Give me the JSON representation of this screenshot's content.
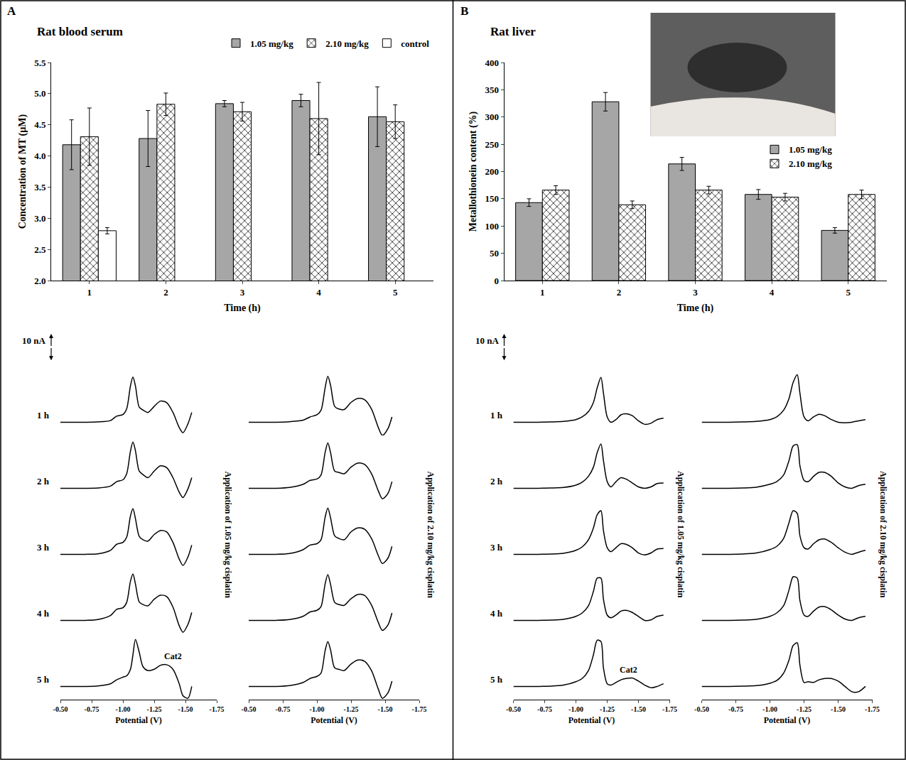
{
  "chart_data": [
    {
      "type": "bar",
      "panel": "A",
      "title": "Rat blood serum",
      "x_label": "Time (h)",
      "y_label": "Concentration of MT (µM)",
      "categories": [
        "1",
        "2",
        "3",
        "4",
        "5"
      ],
      "series": [
        {
          "name": "1.05 mg/kg",
          "color": "#a6a6a6",
          "values": [
            4.18,
            4.28,
            4.84,
            4.89,
            4.63
          ],
          "errors": [
            0.4,
            0.45,
            0.05,
            0.1,
            0.48
          ]
        },
        {
          "name": "2.10 mg/kg",
          "color": "#ffffff",
          "marker": "crosshatch",
          "values": [
            4.31,
            4.83,
            4.71,
            4.6,
            4.55
          ],
          "errors": [
            0.46,
            0.18,
            0.15,
            0.58,
            0.27
          ]
        },
        {
          "name": "control",
          "color": "#ffffff",
          "values": [
            2.8,
            null,
            null,
            null,
            null
          ],
          "errors": [
            0.05,
            null,
            null,
            null,
            null
          ]
        }
      ],
      "ylim": [
        2.0,
        5.5
      ],
      "yticks": [
        {
          "value": 2.0,
          "label": "2.0"
        },
        2.5,
        {
          "value": 3.0,
          "label": "3.0"
        },
        3.5,
        {
          "value": 4.0,
          "label": "4.0"
        },
        4.5,
        {
          "value": 5.0,
          "label": "5.0"
        },
        5.5
      ],
      "grid": false,
      "legend": "top right"
    },
    {
      "type": "line",
      "panel": "A",
      "title": "Application of 1.05 mg/kg cisplatin",
      "x_label": "Potential (V)",
      "color": "#000000",
      "scale_bar": {
        "value": 10,
        "label": "10 nA"
      },
      "x": [
        -0.5,
        -0.6,
        -0.7,
        -0.8,
        -0.9,
        -0.95,
        -1.0,
        -1.03,
        -1.06,
        -1.08,
        -1.1,
        -1.13,
        -1.16,
        -1.2,
        -1.25,
        -1.3,
        -1.35,
        -1.4,
        -1.45,
        -1.48,
        -1.52,
        -1.55
      ],
      "series": [
        {
          "name": "1 h",
          "values": [
            3.0,
            3.0,
            3.0,
            3.1,
            3.6,
            5.3,
            5.9,
            8.1,
            16.7,
            20.1,
            16.7,
            8.7,
            7.6,
            6.7,
            9.0,
            11.0,
            10.4,
            6.7,
            1.0,
            -1.0,
            2.4,
            6.7
          ]
        },
        {
          "name": "2 h",
          "values": [
            3.0,
            3.0,
            3.0,
            3.1,
            3.8,
            5.5,
            6.2,
            8.5,
            17.0,
            20.5,
            17.2,
            9.5,
            8.2,
            7.0,
            9.5,
            11.5,
            10.8,
            7.0,
            1.5,
            -0.5,
            2.8,
            7.0
          ]
        },
        {
          "name": "3 h",
          "values": [
            3.0,
            3.0,
            3.0,
            3.2,
            4.5,
            6.8,
            7.5,
            9.5,
            17.5,
            20.3,
            16.5,
            9.8,
            8.5,
            8.0,
            10.5,
            12.0,
            11.5,
            7.5,
            1.2,
            -1.2,
            2.0,
            6.5
          ]
        },
        {
          "name": "4 h",
          "values": [
            3.0,
            3.0,
            3.0,
            3.3,
            4.8,
            7.2,
            7.8,
            9.8,
            17.8,
            20.6,
            16.8,
            10.0,
            9.0,
            8.5,
            11.0,
            12.5,
            12.0,
            8.0,
            1.0,
            -1.5,
            1.5,
            6.0
          ]
        },
        {
          "name": "5 h",
          "values": [
            3.0,
            3.0,
            3.0,
            3.2,
            4.0,
            5.5,
            6.5,
            7.0,
            9.5,
            15.0,
            20.8,
            16.0,
            10.5,
            9.0,
            9.5,
            11.0,
            11.2,
            9.5,
            4.0,
            -0.5,
            -1.5,
            3.0
          ]
        }
      ],
      "annotations": [
        {
          "text": "Cat2",
          "x": -1.4
        }
      ],
      "xlim": [
        -0.5,
        -1.75
      ],
      "xticks": [
        {
          "value": -0.5,
          "label": "-0.50"
        },
        -0.75,
        {
          "value": -1.0,
          "label": "-1.00"
        },
        -1.25,
        {
          "value": -1.5,
          "label": "-1.50"
        },
        -1.75
      ],
      "ylim": [
        -2,
        23
      ],
      "grid": false,
      "tick_labels": "x"
    },
    {
      "type": "line",
      "panel": "A",
      "title": "Application of 2.10 mg/kg cisplatin",
      "x_label": "Potential (V)",
      "color": "#000000",
      "x": [
        -0.5,
        -0.6,
        -0.7,
        -0.8,
        -0.9,
        -0.95,
        -1.0,
        -1.03,
        -1.06,
        -1.08,
        -1.1,
        -1.13,
        -1.16,
        -1.2,
        -1.25,
        -1.3,
        -1.35,
        -1.4,
        -1.45,
        -1.48,
        -1.52,
        -1.55
      ],
      "series": [
        {
          "values": [
            3.0,
            3.0,
            3.0,
            3.2,
            3.8,
            5.0,
            5.8,
            7.5,
            16.0,
            20.4,
            17.0,
            9.0,
            8.0,
            7.8,
            10.5,
            12.0,
            11.5,
            8.0,
            1.0,
            -2.0,
            0.5,
            5.0
          ]
        },
        {
          "values": [
            3.0,
            3.0,
            3.0,
            3.3,
            4.5,
            6.0,
            6.5,
            8.0,
            16.5,
            20.2,
            16.5,
            9.5,
            9.0,
            8.5,
            11.0,
            12.5,
            12.0,
            8.5,
            2.0,
            -1.0,
            1.0,
            5.5
          ]
        },
        {
          "values": [
            3.0,
            3.0,
            3.0,
            3.3,
            4.8,
            6.5,
            7.0,
            8.5,
            17.0,
            20.5,
            16.8,
            10.0,
            9.0,
            8.5,
            11.5,
            13.0,
            12.5,
            9.0,
            2.5,
            -0.5,
            1.5,
            6.0
          ]
        },
        {
          "values": [
            3.0,
            3.0,
            3.0,
            3.3,
            4.6,
            6.2,
            6.8,
            8.2,
            16.8,
            20.3,
            16.6,
            9.8,
            9.0,
            8.7,
            11.2,
            12.8,
            12.4,
            8.8,
            2.2,
            -0.8,
            1.2,
            5.8
          ]
        },
        {
          "values": [
            3.0,
            3.0,
            3.0,
            3.3,
            4.5,
            6.0,
            6.8,
            8.0,
            16.5,
            20.0,
            16.8,
            10.0,
            9.5,
            9.0,
            11.5,
            13.0,
            12.5,
            9.0,
            2.0,
            -1.5,
            0.5,
            5.0
          ]
        }
      ],
      "xlim": [
        -0.5,
        -1.75
      ],
      "xticks": [
        {
          "value": -0.5,
          "label": "-0.50"
        },
        -0.75,
        {
          "value": -1.0,
          "label": "-1.00"
        },
        -1.25,
        {
          "value": -1.5,
          "label": "-1.50"
        },
        -1.75
      ],
      "ylim": [
        -2,
        23
      ],
      "grid": false,
      "tick_labels": "x"
    },
    {
      "type": "bar",
      "panel": "B",
      "title": "Rat liver",
      "x_label": "Time (h)",
      "y_label": "Metallothionein content (%)",
      "categories": [
        "1",
        "2",
        "3",
        "4",
        "5"
      ],
      "series": [
        {
          "name": "1.05 mg/kg",
          "color": "#a6a6a6",
          "values": [
            143,
            328,
            214,
            158,
            92
          ],
          "errors": [
            7,
            17,
            12,
            9,
            5
          ]
        },
        {
          "name": "2.10 mg/kg",
          "color": "#ffffff",
          "marker": "crosshatch",
          "values": [
            166,
            139,
            166,
            153,
            158
          ],
          "errors": [
            8,
            7,
            7,
            7,
            8
          ]
        }
      ],
      "ylim": [
        0,
        400
      ],
      "yticks": [
        0,
        50,
        100,
        150,
        200,
        250,
        300,
        350,
        400
      ],
      "grid": false,
      "legend": "right"
    },
    {
      "type": "line",
      "panel": "B",
      "title": "Application of 1.05 mg/kg cisplatin",
      "x_label": "Potential (V)",
      "color": "#000000",
      "scale_bar": {
        "value": 10,
        "label": "10 nA"
      },
      "x": [
        -0.5,
        -0.6,
        -0.7,
        -0.8,
        -0.9,
        -1.0,
        -1.05,
        -1.1,
        -1.14,
        -1.17,
        -1.2,
        -1.22,
        -1.25,
        -1.28,
        -1.32,
        -1.36,
        -1.4,
        -1.45,
        -1.5,
        -1.55,
        -1.6,
        -1.65,
        -1.7
      ],
      "series": [
        {
          "name": "1 h",
          "values": [
            3.0,
            3.0,
            3.0,
            3.1,
            3.3,
            4.0,
            5.0,
            7.0,
            10.5,
            16.0,
            20.0,
            14.0,
            5.0,
            3.0,
            4.0,
            5.8,
            6.2,
            5.5,
            3.5,
            2.2,
            2.6,
            4.0,
            4.5
          ]
        },
        {
          "name": "2 h",
          "values": [
            3.0,
            3.0,
            3.0,
            3.1,
            3.3,
            4.2,
            5.3,
            7.5,
            11.0,
            16.5,
            19.8,
            13.5,
            5.5,
            3.5,
            5.5,
            7.0,
            6.5,
            5.0,
            3.5,
            3.0,
            3.5,
            4.8,
            5.0
          ]
        },
        {
          "name": "3 h",
          "values": [
            3.0,
            3.0,
            3.0,
            3.1,
            3.4,
            4.5,
            5.8,
            8.5,
            13.0,
            18.0,
            19.5,
            12.0,
            5.5,
            4.0,
            5.5,
            7.0,
            6.8,
            5.5,
            3.5,
            2.8,
            3.5,
            5.0,
            5.2
          ]
        },
        {
          "name": "4 h",
          "values": [
            3.0,
            3.0,
            3.0,
            3.1,
            3.4,
            4.5,
            5.8,
            8.5,
            14.0,
            19.0,
            19.0,
            11.0,
            5.0,
            4.0,
            5.0,
            6.5,
            6.8,
            6.0,
            4.5,
            3.0,
            3.2,
            4.5,
            5.0
          ]
        },
        {
          "name": "5 h",
          "values": [
            3.0,
            3.0,
            3.0,
            3.1,
            3.5,
            4.8,
            6.0,
            9.0,
            15.0,
            20.5,
            20.0,
            10.0,
            4.0,
            3.5,
            4.5,
            5.5,
            6.0,
            6.2,
            5.0,
            3.5,
            2.5,
            3.0,
            4.0
          ]
        }
      ],
      "annotations": [
        {
          "text": "Cat2",
          "x": -1.42
        }
      ],
      "xlim": [
        -0.5,
        -1.75
      ],
      "xticks": [
        {
          "value": -0.5,
          "label": "-0.50"
        },
        -0.75,
        {
          "value": -1.0,
          "label": "-1.00"
        },
        -1.25,
        {
          "value": -1.5,
          "label": "-1.50"
        },
        -1.75
      ],
      "ylim": [
        -2,
        23
      ],
      "grid": false,
      "tick_labels": "x"
    },
    {
      "type": "line",
      "panel": "B",
      "title": "Application of 2.10 mg/kg cisplatin",
      "x_label": "Potential (V)",
      "color": "#000000",
      "x": [
        -0.5,
        -0.6,
        -0.7,
        -0.8,
        -0.9,
        -1.0,
        -1.05,
        -1.1,
        -1.14,
        -1.17,
        -1.2,
        -1.22,
        -1.25,
        -1.28,
        -1.32,
        -1.36,
        -1.4,
        -1.45,
        -1.5,
        -1.55,
        -1.6,
        -1.65,
        -1.7
      ],
      "series": [
        {
          "values": [
            3.0,
            3.0,
            3.0,
            3.1,
            3.3,
            4.0,
            5.0,
            7.5,
            12.0,
            18.0,
            21.0,
            14.0,
            5.0,
            3.5,
            5.0,
            6.0,
            5.5,
            4.0,
            3.0,
            2.8,
            3.0,
            3.5,
            4.0
          ]
        },
        {
          "values": [
            3.0,
            3.0,
            3.0,
            3.1,
            3.4,
            4.5,
            5.5,
            8.0,
            13.5,
            19.0,
            19.5,
            11.5,
            6.0,
            5.5,
            7.5,
            9.0,
            9.0,
            7.5,
            5.0,
            3.5,
            3.0,
            4.0,
            4.5
          ]
        },
        {
          "values": [
            3.0,
            3.0,
            3.0,
            3.1,
            3.5,
            4.8,
            6.0,
            9.0,
            15.0,
            19.5,
            18.5,
            10.0,
            5.5,
            5.0,
            7.0,
            8.5,
            8.8,
            7.5,
            5.5,
            3.8,
            3.0,
            3.8,
            4.5
          ]
        },
        {
          "values": [
            3.0,
            3.0,
            3.0,
            3.1,
            3.4,
            4.5,
            5.8,
            8.5,
            14.5,
            19.5,
            19.0,
            10.5,
            5.0,
            4.5,
            6.5,
            8.0,
            8.2,
            7.0,
            5.0,
            3.5,
            3.0,
            4.0,
            4.5
          ]
        },
        {
          "values": [
            3.0,
            3.0,
            3.0,
            3.1,
            3.3,
            4.2,
            5.2,
            8.0,
            13.0,
            18.5,
            19.5,
            11.0,
            4.5,
            4.8,
            4.5,
            5.5,
            6.0,
            6.0,
            5.0,
            3.0,
            1.0,
            1.0,
            3.0
          ]
        }
      ],
      "xlim": [
        -0.5,
        -1.75
      ],
      "xticks": [
        {
          "value": -0.5,
          "label": "-0.50"
        },
        -0.75,
        {
          "value": -1.0,
          "label": "-1.00"
        },
        -1.25,
        {
          "value": -1.5,
          "label": "-1.50"
        },
        -1.75
      ],
      "ylim": [
        -2,
        23
      ],
      "grid": false,
      "tick_labels": "x"
    }
  ]
}
